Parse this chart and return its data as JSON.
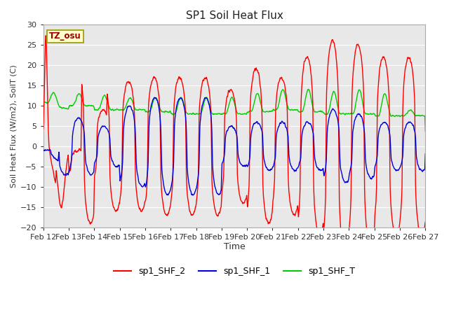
{
  "title": "SP1 Soil Heat Flux",
  "xlabel": "Time",
  "ylabel": "Soil Heat Flux (W/m2), SoilT (C)",
  "ylim": [
    -20,
    30
  ],
  "bg_color": "#ffffff",
  "plot_bg_color": "#e8e8e8",
  "grid_color": "#ffffff",
  "tz_label": "TZ_osu",
  "tz_box_color": "#ffffcc",
  "tz_text_color": "#990000",
  "tz_border_color": "#999900",
  "line_colors": {
    "sp1_SHF_2": "#ff0000",
    "sp1_SHF_1": "#0000dd",
    "sp1_SHF_T": "#00cc00"
  },
  "xtick_labels": [
    "Feb 12",
    "Feb 13",
    "Feb 14",
    "Feb 15",
    "Feb 16",
    "Feb 17",
    "Feb 18",
    "Feb 19",
    "Feb 20",
    "Feb 21",
    "Feb 22",
    "Feb 23",
    "Feb 24",
    "Feb 25",
    "Feb 26",
    "Feb 27"
  ],
  "legend_labels": [
    "sp1_SHF_2",
    "sp1_SHF_1",
    "sp1_SHF_T"
  ],
  "n_days": 15,
  "pts_per_day": 96
}
